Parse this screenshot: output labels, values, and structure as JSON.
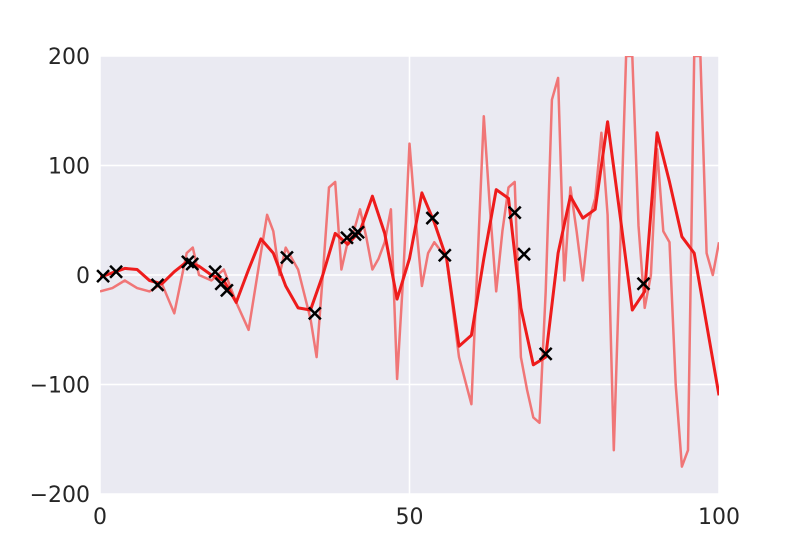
{
  "chart_data": {
    "type": "line",
    "title": "",
    "xlabel": "",
    "ylabel": "",
    "xlim": [
      0,
      100
    ],
    "ylim": [
      -200,
      200
    ],
    "xticks": [
      0,
      50,
      100
    ],
    "yticks": [
      -200,
      -100,
      0,
      100,
      200
    ],
    "x_tick_labels": [
      "0",
      "50",
      "100"
    ],
    "y_tick_labels": [
      "−200",
      "−100",
      "0",
      "100",
      "200"
    ],
    "grid": true,
    "legend": "none",
    "colors": {
      "background": "#eaeaf2",
      "grid": "#ffffff",
      "smooth_line": "#ee1c1c",
      "sample_line": "#f07070",
      "markers": "#000000"
    },
    "series": [
      {
        "style": "thick-solid",
        "x": [
          0,
          2,
          4,
          6,
          8,
          10,
          12,
          14,
          16,
          18,
          20,
          22,
          24,
          26,
          28,
          30,
          32,
          34,
          36,
          38,
          40,
          42,
          44,
          46,
          48,
          50,
          52,
          54,
          56,
          58,
          60,
          62,
          64,
          66,
          68,
          70,
          72,
          74,
          76,
          78,
          80,
          82,
          84,
          86,
          88,
          90,
          92,
          94,
          96,
          98,
          100
        ],
        "y": [
          -2,
          2,
          6,
          5,
          -5,
          -8,
          3,
          12,
          8,
          0,
          -5,
          -25,
          5,
          33,
          20,
          -10,
          -30,
          -32,
          0,
          38,
          28,
          40,
          72,
          38,
          -22,
          15,
          75,
          48,
          15,
          -65,
          -55,
          15,
          78,
          70,
          -30,
          -82,
          -75,
          20,
          72,
          52,
          60,
          140,
          55,
          -32,
          -15,
          130,
          85,
          35,
          20,
          -45,
          -110
        ]
      },
      {
        "style": "thin-translucent",
        "x": [
          0,
          2,
          4,
          6,
          8,
          10,
          12,
          14,
          15,
          16,
          18,
          20,
          22,
          24,
          26,
          27,
          28,
          29,
          30,
          32,
          34,
          35,
          36,
          37,
          38,
          39,
          40,
          41,
          42,
          43,
          44,
          45,
          46,
          47,
          48,
          49,
          50,
          51,
          52,
          53,
          54,
          56,
          58,
          60,
          62,
          63,
          64,
          65,
          66,
          67,
          68,
          69,
          70,
          71,
          72,
          73,
          74,
          75,
          76,
          77,
          78,
          79,
          80,
          81,
          82,
          83,
          84,
          85,
          86,
          87,
          88,
          89,
          90,
          91,
          92,
          93,
          94,
          95,
          96,
          97,
          98,
          99,
          100
        ],
        "y": [
          -15,
          -12,
          -5,
          -12,
          -15,
          -8,
          -35,
          20,
          25,
          0,
          -5,
          5,
          -25,
          -50,
          20,
          55,
          40,
          0,
          25,
          5,
          -40,
          -75,
          0,
          80,
          85,
          5,
          30,
          40,
          60,
          35,
          5,
          15,
          30,
          60,
          -95,
          0,
          120,
          50,
          -10,
          20,
          30,
          15,
          -75,
          -118,
          145,
          60,
          -15,
          40,
          80,
          85,
          -75,
          -105,
          -130,
          -135,
          -15,
          160,
          180,
          -5,
          80,
          40,
          -5,
          50,
          70,
          130,
          55,
          -160,
          20,
          200,
          200,
          45,
          -30,
          0,
          115,
          40,
          30,
          -100,
          -175,
          -160,
          200,
          200,
          20,
          0,
          30
        ]
      }
    ],
    "markers": {
      "symbol": "x",
      "x": [
        0.5,
        2.6,
        9.3,
        14.2,
        14.9,
        18.6,
        19.6,
        20.5,
        30.2,
        34.7,
        39.9,
        41.2,
        41.7,
        53.7,
        55.7,
        67.0,
        68.5,
        72.0,
        87.8
      ],
      "y": [
        -1,
        3,
        -9,
        12,
        10,
        3,
        -8,
        -14,
        16,
        -35,
        34,
        37,
        39,
        52,
        18,
        57,
        19,
        -72,
        -8
      ]
    }
  }
}
